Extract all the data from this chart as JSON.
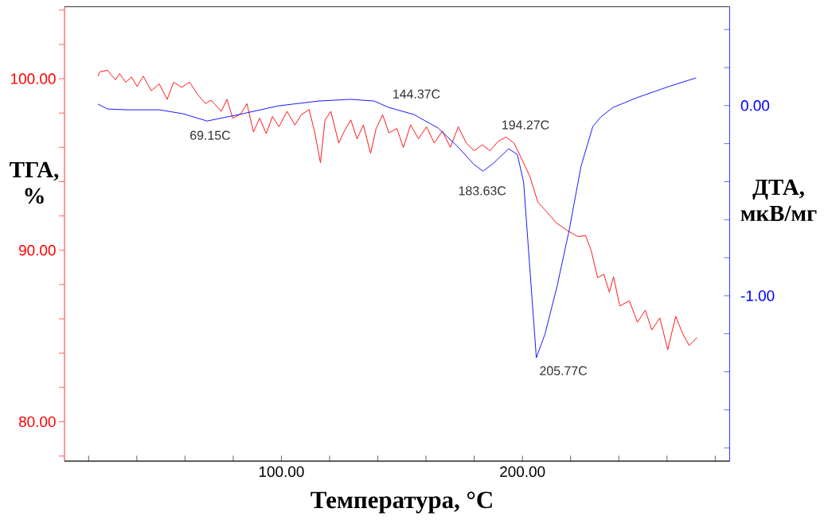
{
  "chart_data": {
    "type": "line",
    "xlabel": "Температура, °C",
    "ylabel": "ТГА, %",
    "y2label": "ДТА, мкВ/мг",
    "xlim": [
      10,
      286
    ],
    "xticks": [
      {
        "value": 20,
        "label": null
      },
      {
        "value": 40,
        "label": null
      },
      {
        "value": 60,
        "label": null
      },
      {
        "value": 80,
        "label": null
      },
      {
        "value": 100,
        "label": "100.00"
      },
      {
        "value": 120,
        "label": null
      },
      {
        "value": 140,
        "label": null
      },
      {
        "value": 160,
        "label": null
      },
      {
        "value": 180,
        "label": null
      },
      {
        "value": 200,
        "label": "200.00"
      },
      {
        "value": 220,
        "label": null
      },
      {
        "value": 240,
        "label": null
      },
      {
        "value": 260,
        "label": null
      },
      {
        "value": 280,
        "label": null
      }
    ],
    "ylim": [
      77.7,
      104.2
    ],
    "yticks": [
      {
        "value": 78,
        "label": null
      },
      {
        "value": 80,
        "label": "80.00"
      },
      {
        "value": 82,
        "label": null
      },
      {
        "value": 84,
        "label": null
      },
      {
        "value": 86,
        "label": null
      },
      {
        "value": 88,
        "label": null
      },
      {
        "value": 90,
        "label": "90.00"
      },
      {
        "value": 92,
        "label": null
      },
      {
        "value": 94,
        "label": null
      },
      {
        "value": 96,
        "label": null
      },
      {
        "value": 98,
        "label": null
      },
      {
        "value": 100,
        "label": "100.00"
      },
      {
        "value": 102,
        "label": null
      },
      {
        "value": 104,
        "label": null
      }
    ],
    "y2lim": [
      -1.87,
      0.52
    ],
    "y2ticks": [
      {
        "value": -1.8,
        "label": null
      },
      {
        "value": -1.6,
        "label": null
      },
      {
        "value": -1.4,
        "label": null
      },
      {
        "value": -1.2,
        "label": null
      },
      {
        "value": -1.0,
        "label": "-1.00"
      },
      {
        "value": -0.8,
        "label": null
      },
      {
        "value": -0.6,
        "label": null
      },
      {
        "value": -0.4,
        "label": null
      },
      {
        "value": -0.2,
        "label": null
      },
      {
        "value": 0,
        "label": "0.00"
      },
      {
        "value": 0.2,
        "label": null
      },
      {
        "value": 0.4,
        "label": null
      }
    ],
    "series": [
      {
        "color": "#ff0000",
        "x": [
          23.9,
          24.6,
          27.9,
          29.5,
          31.2,
          32.8,
          35.4,
          37.8,
          40.1,
          42.7,
          46,
          49.3,
          52.6,
          55.3,
          58.6,
          61.9,
          65.2,
          68.5,
          70.8,
          75.1,
          77.4,
          79.8,
          83.1,
          85.7,
          88.4,
          91,
          93.7,
          96.3,
          99,
          102.3,
          105.6,
          108.2,
          111.5,
          113.8,
          116.2,
          118.1,
          120.5,
          123.8,
          126.1,
          128.8,
          131.4,
          134,
          137,
          139.3,
          142,
          144.6,
          147.9,
          150.6,
          153.6,
          156.9,
          160.2,
          163.4,
          166.8,
          170.1,
          173.4,
          176.7,
          180,
          183.3,
          186.6,
          189.9,
          193.2,
          196.5,
          199.8,
          203.1,
          206.4,
          209.7,
          214,
          218.6,
          222.9,
          226.2,
          228.5,
          231.2,
          233.8,
          236.1,
          237.8,
          240.4,
          244.4,
          247.7,
          251,
          253.7,
          257,
          260.3,
          263.6,
          266.6,
          269.2,
          272.5
        ],
        "values": [
          100.15,
          100.4,
          100.5,
          100.2,
          99.95,
          100.3,
          99.8,
          100.1,
          99.55,
          100.15,
          99.3,
          99.7,
          98.8,
          99.8,
          99.5,
          99.8,
          99.1,
          98.55,
          98.75,
          98.1,
          98.8,
          97.7,
          97.95,
          98.55,
          96.9,
          97.7,
          96.8,
          97.8,
          97.2,
          98.1,
          97.3,
          97.9,
          98.2,
          96.9,
          95.1,
          97.6,
          98.1,
          96.25,
          96.95,
          97.6,
          96.5,
          97.3,
          95.65,
          97.1,
          97.9,
          96.85,
          97.1,
          96,
          97.3,
          96.5,
          97.2,
          96.25,
          96.95,
          96,
          97.2,
          96.25,
          95.8,
          96.15,
          95.8,
          96.35,
          96.6,
          96.25,
          95.3,
          94.3,
          92.8,
          92.3,
          91.6,
          91.15,
          90.8,
          90.85,
          90,
          88.4,
          88.6,
          87.55,
          88.45,
          86.75,
          87.05,
          85.8,
          86.5,
          85.35,
          86.05,
          84.2,
          86.15,
          85.1,
          84.45,
          84.9
        ]
      },
      {
        "color": "#0000ff",
        "axis": "y2",
        "x": [
          23.9,
          27.9,
          36.2,
          49.3,
          59.2,
          69.15,
          82.4,
          98.9,
          115.4,
          128.6,
          138.5,
          144.37,
          155,
          165,
          173.1,
          179.7,
          183.63,
          188,
          194.27,
          197.9,
          200.5,
          202.9,
          205.77,
          209.4,
          214.4,
          219.4,
          224.3,
          229.2,
          232.5,
          237.5,
          247.4,
          260.6,
          272.1
        ],
        "values": [
          0.008,
          -0.018,
          -0.022,
          -0.022,
          -0.043,
          -0.081,
          -0.047,
          -0.001,
          0.024,
          0.033,
          0.024,
          -0.009,
          -0.047,
          -0.118,
          -0.215,
          -0.307,
          -0.345,
          -0.303,
          -0.227,
          -0.257,
          -0.403,
          -0.823,
          -1.326,
          -1.2,
          -0.949,
          -0.655,
          -0.32,
          -0.11,
          -0.06,
          -0.01,
          0.041,
          0.1,
          0.146
        ]
      }
    ],
    "annotations": [
      "69.15C",
      "144.37C",
      "183.63C",
      "194.27C",
      "205.77C"
    ]
  }
}
